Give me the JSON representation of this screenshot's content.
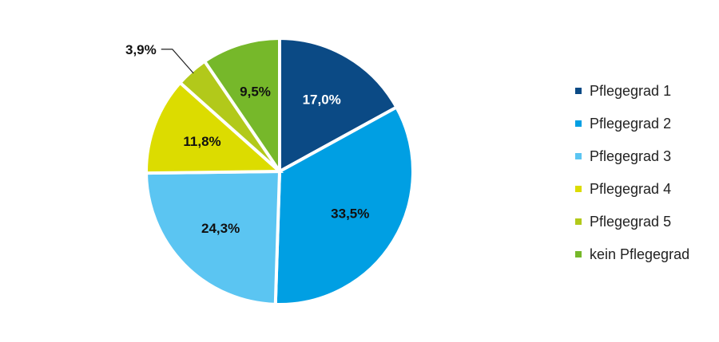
{
  "chart_data": {
    "type": "pie",
    "categories": [
      "Pflegegrad 1",
      "Pflegegrad 2",
      "Pflegegrad 3",
      "Pflegegrad 4",
      "Pflegegrad 5",
      "kein Pflegegrad"
    ],
    "values": [
      17.0,
      33.5,
      24.3,
      11.8,
      3.9,
      9.5
    ],
    "value_labels": [
      "17,0%",
      "33,5%",
      "24,3%",
      "11,8%",
      "3,9%",
      "9,5%"
    ],
    "colors": [
      "#0b4a85",
      "#009fe3",
      "#5bc5f2",
      "#dcdc00",
      "#b2c91a",
      "#76b82a"
    ],
    "legend": "right"
  }
}
